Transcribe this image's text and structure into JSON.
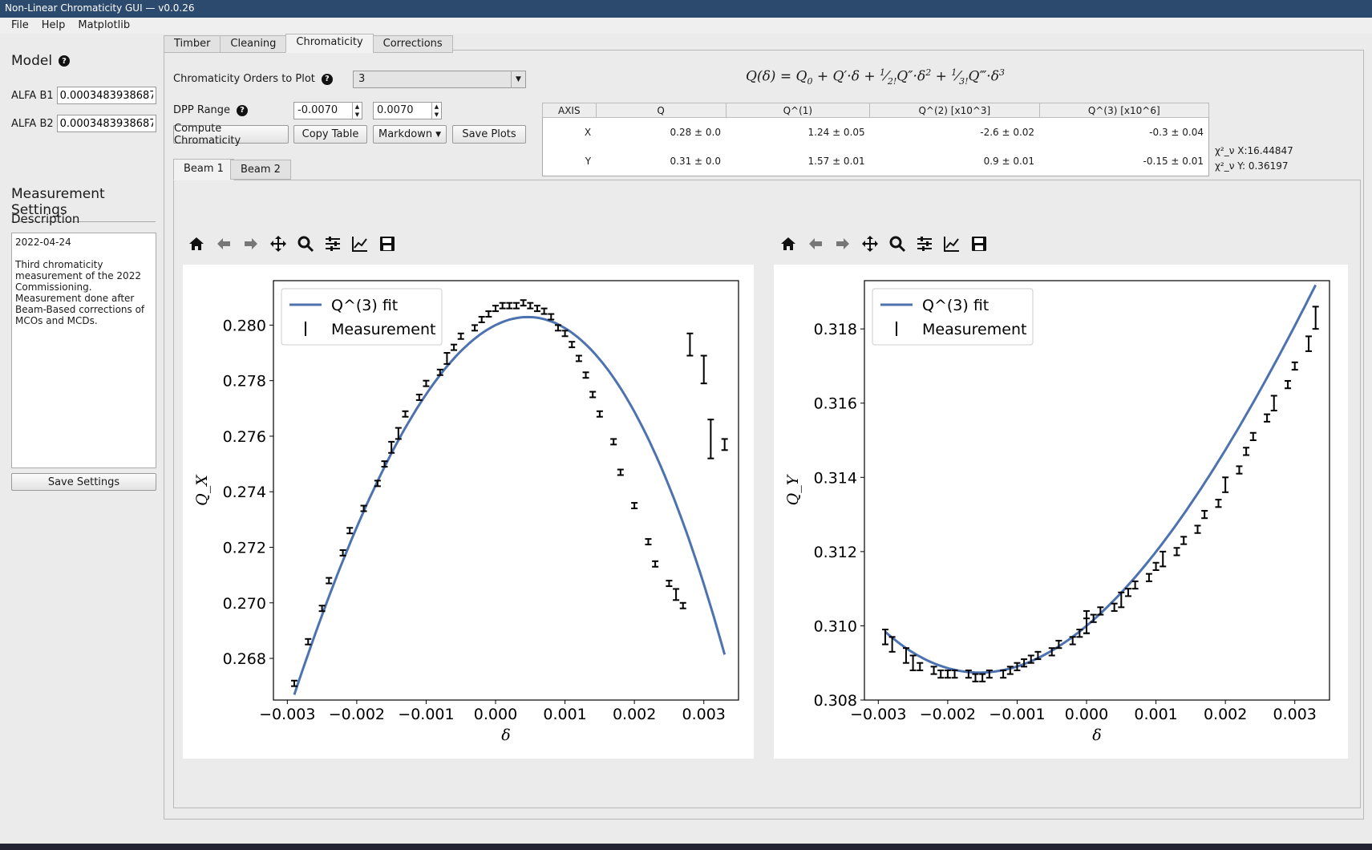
{
  "window": {
    "title": "Non-Linear Chromaticity GUI — v0.0.26"
  },
  "menu": [
    "File",
    "Help",
    "Matplotlib"
  ],
  "sidebar": {
    "model_title": "Model",
    "alfa_b1_label": "ALFA B1",
    "alfa_b1_value": "0.0003483938687",
    "alfa_b2_label": "ALFA B2",
    "alfa_b2_value": "0.0003483938687",
    "measurement_title": "Measurement Settings",
    "description_title": "Description",
    "description": "2022-04-24\n\nThird chromaticity measurement of the 2022 Commissioning.\nMeasurement done after Beam-Based corrections of MCOs and MCDs.",
    "save_settings": "Save Settings"
  },
  "tabs": [
    "Timber",
    "Cleaning",
    "Chromaticity",
    "Corrections"
  ],
  "controls": {
    "orders_label": "Chromaticity Orders to Plot",
    "orders_value": "3",
    "dpp_label": "DPP Range",
    "dpp_min": "-0.0070",
    "dpp_max": "0.0070",
    "compute": "Compute Chromaticity",
    "copy_table": "Copy Table",
    "format": "Markdown",
    "save_plots": "Save Plots"
  },
  "table": {
    "headers": [
      "AXIS",
      "Q",
      "Q^(1)",
      "Q^(2) [x10^3]",
      "Q^(3) [x10^6]"
    ],
    "rows": [
      [
        "X",
        "0.28 ± 0.0",
        "1.24 ± 0.05",
        "-2.6 ± 0.02",
        "-0.3 ± 0.04"
      ],
      [
        "Y",
        "0.31 ± 0.0",
        "1.57 ± 0.01",
        "0.9 ± 0.01",
        "-0.15 ± 0.01"
      ]
    ]
  },
  "chi": {
    "x": "χ²_ν X:16.44847",
    "y": "χ²_ν Y: 0.36197"
  },
  "beam_tabs": [
    "Beam 1",
    "Beam 2"
  ],
  "chart_data": [
    {
      "type": "scatter",
      "xlabel": "δ",
      "ylabel": "Q_X",
      "xlim": [
        -0.0032,
        0.0035
      ],
      "ylim": [
        0.2665,
        0.2816
      ],
      "xticks": [
        "−0.003",
        "−0.002",
        "−0.001",
        "0.000",
        "0.001",
        "0.002",
        "0.003"
      ],
      "yticks": [
        "0.268",
        "0.270",
        "0.272",
        "0.274",
        "0.276",
        "0.278",
        "0.280"
      ],
      "legend": [
        "Q^(3) fit",
        "Measurement"
      ],
      "series": [
        {
          "name": "Measurement",
          "x": [
            -0.0029,
            -0.0027,
            -0.0025,
            -0.0024,
            -0.0022,
            -0.0021,
            -0.0019,
            -0.0017,
            -0.0016,
            -0.0015,
            -0.0014,
            -0.0013,
            -0.0011,
            -0.001,
            -0.0008,
            -0.0007,
            -0.0006,
            -0.0005,
            -0.0003,
            -0.0002,
            -0.0001,
            0.0,
            0.0001,
            0.0002,
            0.0003,
            0.0004,
            0.0005,
            0.0006,
            0.0007,
            0.0008,
            0.0009,
            0.001,
            0.0011,
            0.0012,
            0.0013,
            0.0014,
            0.0015,
            0.0017,
            0.0018,
            0.002,
            0.0022,
            0.0023,
            0.0025,
            0.0026,
            0.0027,
            0.0028,
            0.003,
            0.0031,
            0.0033
          ],
          "y": [
            0.2671,
            0.2686,
            0.2698,
            0.2708,
            0.2718,
            0.2726,
            0.2734,
            0.2743,
            0.275,
            0.2756,
            0.2761,
            0.2768,
            0.2774,
            0.2779,
            0.2783,
            0.2788,
            0.2792,
            0.2796,
            0.2799,
            0.2802,
            0.2804,
            0.2806,
            0.2807,
            0.2807,
            0.2807,
            0.2808,
            0.2807,
            0.2806,
            0.2805,
            0.2803,
            0.2799,
            0.2797,
            0.2793,
            0.2788,
            0.2782,
            0.2775,
            0.2768,
            0.2758,
            0.2747,
            0.2735,
            0.2722,
            0.2714,
            0.2707,
            0.2703,
            0.2699,
            0.2793,
            0.2784,
            0.2759,
            0.2757
          ],
          "yerr": [
            0.0001,
            0.0001,
            0.0001,
            0.0001,
            0.0001,
            0.0001,
            0.0001,
            0.0001,
            0.0001,
            0.0002,
            0.0002,
            0.0001,
            0.0001,
            0.0001,
            0.0001,
            0.0002,
            0.0001,
            0.0001,
            0.0001,
            0.0001,
            0.0001,
            0.0001,
            0.0001,
            0.0001,
            0.0001,
            0.0001,
            0.0001,
            0.0001,
            0.0001,
            0.0001,
            0.0001,
            0.0001,
            0.0001,
            0.0001,
            0.0001,
            0.0001,
            0.0001,
            0.0001,
            0.0001,
            0.0001,
            0.0001,
            0.0001,
            0.0001,
            0.0002,
            0.0001,
            0.0004,
            0.0005,
            0.0007,
            0.0002
          ]
        },
        {
          "name": "Q^(3) fit",
          "coef": [
            0.28,
            1.24,
            -2600,
            -300000
          ]
        }
      ]
    },
    {
      "type": "scatter",
      "xlabel": "δ",
      "ylabel": "Q_Y",
      "xlim": [
        -0.0032,
        0.0035
      ],
      "ylim": [
        0.308,
        0.3193
      ],
      "xticks": [
        "−0.003",
        "−0.002",
        "−0.001",
        "0.000",
        "0.001",
        "0.002",
        "0.003"
      ],
      "yticks": [
        "0.308",
        "0.310",
        "0.312",
        "0.314",
        "0.316",
        "0.318"
      ],
      "legend": [
        "Q^(3) fit",
        "Measurement"
      ],
      "series": [
        {
          "name": "Measurement",
          "x": [
            -0.0029,
            -0.0028,
            -0.0026,
            -0.0025,
            -0.0024,
            -0.0022,
            -0.0021,
            -0.002,
            -0.0019,
            -0.0017,
            -0.0016,
            -0.0015,
            -0.0014,
            -0.0012,
            -0.0011,
            -0.001,
            -0.0009,
            -0.0008,
            -0.0007,
            -0.0005,
            -0.0004,
            -0.0002,
            -0.0001,
            0.0,
            0.0,
            0.0001,
            0.0002,
            0.0004,
            0.0005,
            0.0006,
            0.0007,
            0.0009,
            0.001,
            0.0011,
            0.0013,
            0.0014,
            0.0016,
            0.0017,
            0.0019,
            0.002,
            0.0022,
            0.0023,
            0.0024,
            0.0026,
            0.0027,
            0.0029,
            0.003,
            0.0032,
            0.0033
          ],
          "y": [
            0.3097,
            0.3095,
            0.3092,
            0.309,
            0.3089,
            0.3088,
            0.3087,
            0.3087,
            0.3087,
            0.3087,
            0.3086,
            0.3086,
            0.3087,
            0.3087,
            0.3088,
            0.3089,
            0.309,
            0.3091,
            0.3092,
            0.3093,
            0.3095,
            0.3096,
            0.3098,
            0.31,
            0.3101,
            0.3102,
            0.3104,
            0.3105,
            0.3107,
            0.3109,
            0.3111,
            0.3113,
            0.3116,
            0.3118,
            0.312,
            0.3123,
            0.3126,
            0.313,
            0.3133,
            0.3138,
            0.3142,
            0.3147,
            0.3151,
            0.3156,
            0.316,
            0.3165,
            0.317,
            0.3176,
            0.3183
          ],
          "yerr": [
            0.0002,
            0.0002,
            0.0002,
            0.0002,
            0.0001,
            0.0001,
            0.0001,
            0.0001,
            0.0001,
            0.0001,
            0.0001,
            0.0001,
            0.0001,
            0.0001,
            0.0001,
            0.0001,
            0.0001,
            0.0001,
            0.0001,
            0.0001,
            0.0001,
            0.0001,
            0.0001,
            0.0002,
            0.0003,
            0.0001,
            0.0001,
            0.0001,
            0.0002,
            0.0001,
            0.0001,
            0.0001,
            0.0001,
            0.0002,
            0.0001,
            0.0001,
            0.0001,
            0.0001,
            0.0001,
            0.0002,
            0.0001,
            0.0001,
            0.0001,
            0.0001,
            0.0002,
            0.0001,
            0.0001,
            0.0002,
            0.0003
          ]
        },
        {
          "name": "Q^(3) fit",
          "coef": [
            0.31,
            1.57,
            900,
            -150000
          ]
        }
      ]
    }
  ]
}
